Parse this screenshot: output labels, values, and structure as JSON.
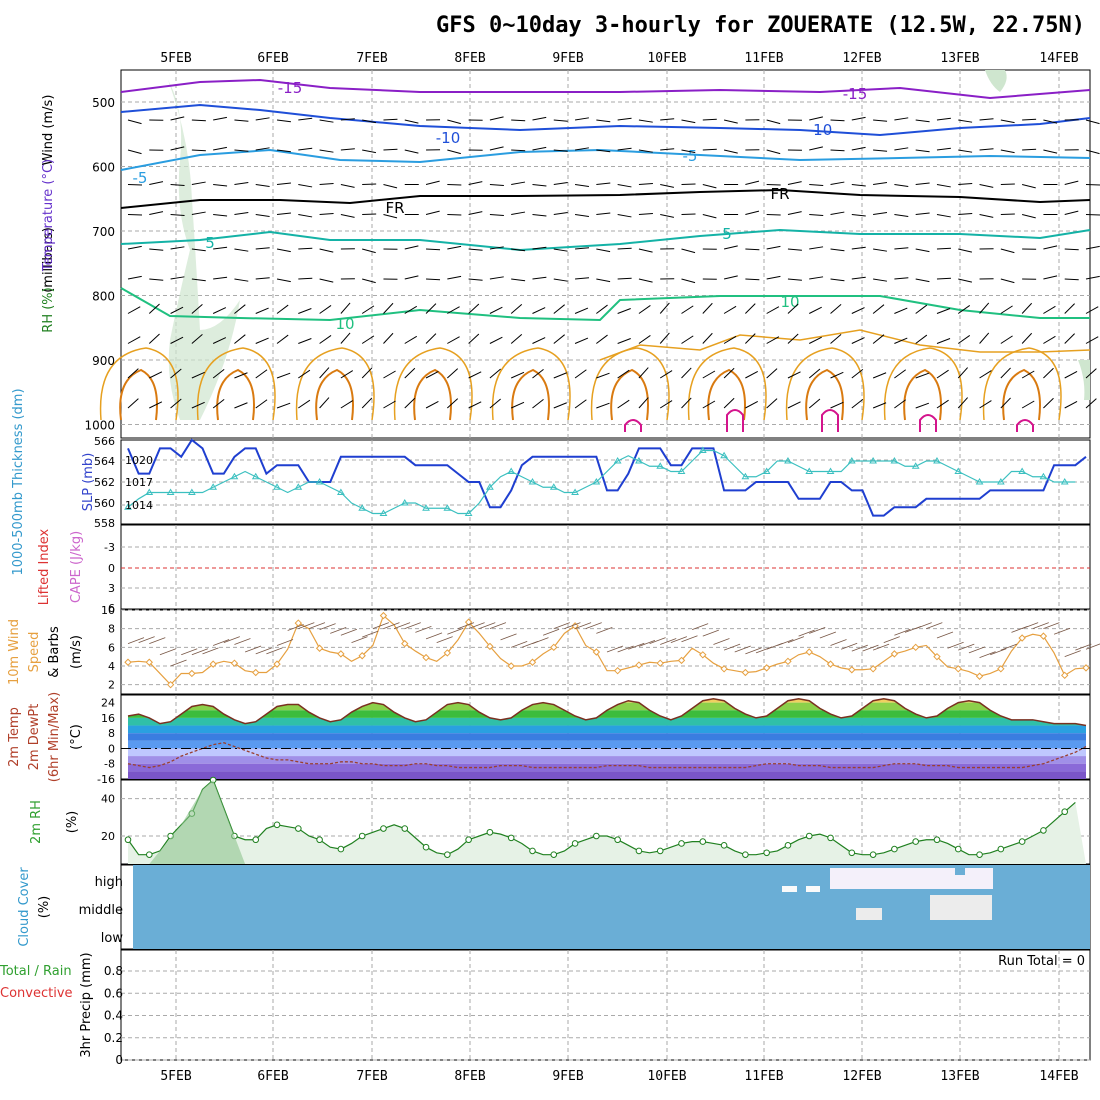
{
  "title": "GFS 0~10day 3-hourly for ZOUERATE (12.5W, 22.75N)",
  "days": [
    "5FEB",
    "6FEB",
    "7FEB",
    "8FEB",
    "9FEB",
    "10FEB",
    "11FEB",
    "12FEB",
    "13FEB",
    "14FEB"
  ],
  "colors": {
    "purple": "#8a1fc6",
    "blue": "#1f4fd8",
    "lightblue": "#2a9de0",
    "black": "#000000",
    "teal": "#14b2a6",
    "green": "#20c080",
    "orange": "#e6a020",
    "darkorange": "#d97a10",
    "magenta": "#d4148c",
    "slp": "#1f3fd0",
    "thick": "#3cc0c0",
    "wind": "#e6a040",
    "rh": "#30a030",
    "cloud": "#6aaed6",
    "cape": "#cc66cc",
    "lifted": "#dd3333"
  },
  "panels": {
    "upper": {
      "ylabel_wind": "Wind (m/s)",
      "ylabel_temp": "Temperature (°C)",
      "ylabel_rh": "RH (%)",
      "ylabel_mb": "(millibars)",
      "yticks": [
        "500",
        "600",
        "700",
        "800",
        "900",
        "1000"
      ],
      "labels": [
        "-15",
        "-15",
        "-10",
        "-10",
        "-5",
        "-5",
        "FR",
        "FR",
        "5",
        "5",
        "10",
        "10"
      ]
    },
    "slp": {
      "ylabel_thick": "1000-500mb Thickness (dm)",
      "ylabel_slp": "SLP (mb)",
      "yticks_left": [
        "566",
        "564",
        "562",
        "560",
        "558"
      ],
      "yticks_right": [
        "1020",
        "1017",
        "1014"
      ]
    },
    "cape": {
      "ylabel_li": "Lifted Index",
      "ylabel_cape": "CAPE (J/kg)",
      "yticks": [
        "-3",
        "0",
        "3",
        "6"
      ]
    },
    "wind10": {
      "ylabel1": "10m Wind",
      "ylabel2": "Speed",
      "ylabel3": "& Barbs",
      "ylabel_unit": "(m/s)",
      "yticks": [
        "10",
        "8",
        "6",
        "4",
        "2"
      ]
    },
    "temp2m": {
      "ylabel1": "2m Temp",
      "ylabel2": "2m DewPt",
      "ylabel3": "(6hr Min/Max)",
      "ylabel_unit": "(°C)",
      "yticks": [
        "24",
        "16",
        "8",
        "0",
        "-8",
        "-16"
      ]
    },
    "rh2m": {
      "ylabel": "2m RH",
      "ylabel_unit": "(%)",
      "yticks": [
        "40",
        "20"
      ]
    },
    "cloud": {
      "ylabel": "Cloud Cover",
      "ylabel_unit": "(%)",
      "levels": [
        "high",
        "middle",
        "low"
      ]
    },
    "precip": {
      "ylabel1": "Total / Rain",
      "ylabel2": "Convective",
      "ylabel_unit": "3hr Precip (mm)",
      "yticks": [
        "0.8",
        "0.6",
        "0.4",
        "0.2",
        "0"
      ],
      "run_total": "Run Total = 0"
    }
  },
  "chart_data": [
    {
      "type": "line",
      "title": "SLP (mb)",
      "series": [
        {
          "name": "SLP (mb)",
          "values": [
            1021,
            1018,
            1018,
            1021,
            1021,
            1020,
            1022,
            1021,
            1018,
            1018,
            1020,
            1021,
            1021,
            1018,
            1019,
            1019,
            1019,
            1017,
            1017,
            1017,
            1020,
            1020,
            1020,
            1020,
            1020,
            1020,
            1020,
            1019,
            1019,
            1019,
            1019,
            1018,
            1017,
            1017,
            1014,
            1014,
            1016,
            1019,
            1020,
            1020,
            1020,
            1020,
            1020,
            1020,
            1020,
            1016,
            1016,
            1018,
            1021,
            1021,
            1021,
            1019,
            1019,
            1021,
            1021,
            1021,
            1016,
            1016,
            1016,
            1017,
            1017,
            1017,
            1017,
            1015,
            1015,
            1015,
            1017,
            1017,
            1016,
            1016,
            1013,
            1013,
            1014,
            1014,
            1014,
            1015,
            1015,
            1015,
            1015,
            1015,
            1015,
            1016,
            1016,
            1016,
            1016,
            1016,
            1016,
            1019,
            1019,
            1019,
            1020
          ]
        }
      ],
      "ylim": [
        1012,
        1022
      ]
    },
    {
      "type": "line",
      "title": "1000-500mb Thickness (dm)",
      "series": [
        {
          "name": "1000-500mb Thickness (dm)",
          "values": [
            559.6,
            560.4,
            561,
            561,
            561,
            561,
            561,
            561,
            561.5,
            562,
            562.5,
            563,
            562.5,
            562,
            561.5,
            561,
            561.5,
            562,
            562,
            561.5,
            561,
            560,
            559.5,
            559,
            559,
            559.5,
            560,
            560,
            559.5,
            559.5,
            559.5,
            559,
            559,
            560,
            561.5,
            562.5,
            563,
            562.5,
            562,
            561.5,
            561.5,
            561,
            561,
            561.5,
            562,
            563,
            564,
            564.5,
            564,
            563.5,
            563.5,
            563,
            563,
            564,
            565,
            565,
            564.5,
            563.5,
            562.5,
            562.5,
            563,
            564,
            564,
            563.5,
            563,
            563,
            563,
            563,
            564,
            564,
            564,
            564,
            564,
            563.5,
            563.5,
            564,
            564,
            563.5,
            563,
            562.5,
            562,
            562,
            562,
            563,
            563,
            562.5,
            562.5,
            562,
            562,
            562
          ]
        }
      ],
      "ylim": [
        558,
        566
      ]
    },
    {
      "type": "line",
      "title": "10m Wind Speed (m/s)",
      "series": [
        {
          "name": "10m Wind Speed (m/s)",
          "values": [
            4.4,
            4.5,
            4.4,
            3.2,
            2,
            3.2,
            3.2,
            3.3,
            4.2,
            4.5,
            4.3,
            3.5,
            3.3,
            3.3,
            4.2,
            5.8,
            8.6,
            8,
            5.9,
            5.5,
            5.3,
            4.5,
            5.1,
            6.2,
            9.4,
            8.4,
            6.4,
            5.6,
            4.9,
            4.5,
            5.4,
            6.8,
            8.7,
            7.5,
            6.1,
            4.8,
            4,
            4,
            4.4,
            5.3,
            6,
            7.5,
            8.3,
            6.2,
            5.5,
            3.5,
            3.5,
            3.8,
            4.1,
            4.4,
            4.3,
            4.5,
            4.6,
            5.9,
            5.2,
            4.3,
            3.7,
            3.5,
            3.3,
            3.4,
            3.8,
            4.2,
            4.5,
            5.2,
            5.5,
            5,
            4.2,
            3.8,
            3.6,
            3.6,
            3.7,
            4.5,
            5.3,
            5.6,
            6,
            6.2,
            5,
            3.9,
            3.7,
            3.4,
            2.9,
            3.2,
            3.7,
            5.6,
            7,
            7.4,
            7.2,
            5.4,
            3,
            3.7,
            3.8
          ]
        }
      ],
      "ylim": [
        1,
        10
      ]
    },
    {
      "type": "line",
      "title": "2m RH (%)",
      "series": [
        {
          "name": "2m RH (%)",
          "values": [
            18,
            10,
            10,
            12,
            20,
            26,
            32,
            45,
            50,
            35,
            20,
            18,
            18,
            24,
            26,
            25,
            24,
            20,
            18,
            14,
            13,
            16,
            20,
            22,
            24,
            26,
            24,
            19,
            14,
            11,
            10,
            13,
            18,
            20,
            22,
            21,
            19,
            16,
            12,
            10,
            10,
            12,
            16,
            18,
            20,
            20,
            18,
            15,
            12,
            11,
            12,
            14,
            16,
            17,
            17,
            16,
            15,
            12,
            10,
            10,
            11,
            12,
            15,
            18,
            20,
            21,
            19,
            15,
            11,
            10,
            10,
            11,
            13,
            15,
            17,
            18,
            18,
            16,
            13,
            10,
            10,
            11,
            13,
            15,
            17,
            20,
            23,
            28,
            33,
            38
          ]
        }
      ],
      "ylim": [
        5,
        50
      ]
    },
    {
      "type": "line",
      "title": "2m Temp (°C)",
      "series": [
        {
          "name": "2m Temp",
          "values": [
            17,
            18,
            16,
            13,
            14,
            18,
            22,
            23,
            22,
            18,
            15,
            13,
            14,
            18,
            22,
            23,
            23,
            19,
            16,
            14,
            15,
            19,
            22,
            24,
            23,
            19,
            16,
            14,
            15,
            19,
            23,
            24,
            23,
            19,
            16,
            15,
            16,
            20,
            23,
            24,
            23,
            20,
            17,
            15,
            16,
            20,
            23,
            25,
            24,
            20,
            17,
            15,
            17,
            21,
            25,
            26,
            25,
            21,
            18,
            16,
            17,
            21,
            25,
            26,
            25,
            21,
            18,
            16,
            17,
            21,
            25,
            26,
            25,
            21,
            18,
            16,
            17,
            21,
            24,
            25,
            24,
            20,
            17,
            15,
            15,
            15,
            14,
            13,
            13,
            13,
            12
          ]
        },
        {
          "name": "2m DewPt",
          "values": [
            -8,
            -9,
            -10,
            -9,
            -7,
            -4,
            -2,
            0,
            2,
            3,
            1,
            -1,
            -3,
            -5,
            -6,
            -6,
            -7,
            -8,
            -8,
            -8,
            -7,
            -7,
            -8,
            -8,
            -9,
            -9,
            -9,
            -8,
            -8,
            -9,
            -9,
            -10,
            -10,
            -10,
            -10,
            -9,
            -9,
            -9,
            -10,
            -10,
            -10,
            -10,
            -10,
            -10,
            -10,
            -9,
            -9,
            -9,
            -9,
            -10,
            -10,
            -10,
            -10,
            -10,
            -10,
            -10,
            -10,
            -10,
            -10,
            -9,
            -8,
            -8,
            -8,
            -9,
            -9,
            -9,
            -10,
            -10,
            -10,
            -10,
            -10,
            -9,
            -8,
            -8,
            -8,
            -9,
            -9,
            -9,
            -10,
            -10,
            -10,
            -10,
            -10,
            -10,
            -10,
            -9,
            -8,
            -6,
            -4,
            -2,
            1
          ]
        }
      ],
      "ylim": [
        -16,
        28
      ]
    },
    {
      "type": "line",
      "title": "Lifted Index",
      "series": [],
      "ylim": [
        -6,
        6
      ]
    },
    {
      "type": "bar",
      "title": "3hr Precip (mm)",
      "series": [],
      "ylim": [
        0,
        1
      ]
    },
    {
      "type": "heatmap",
      "title": "Cloud Cover (%)",
      "categories": [
        "high",
        "middle",
        "low"
      ],
      "series": []
    }
  ]
}
